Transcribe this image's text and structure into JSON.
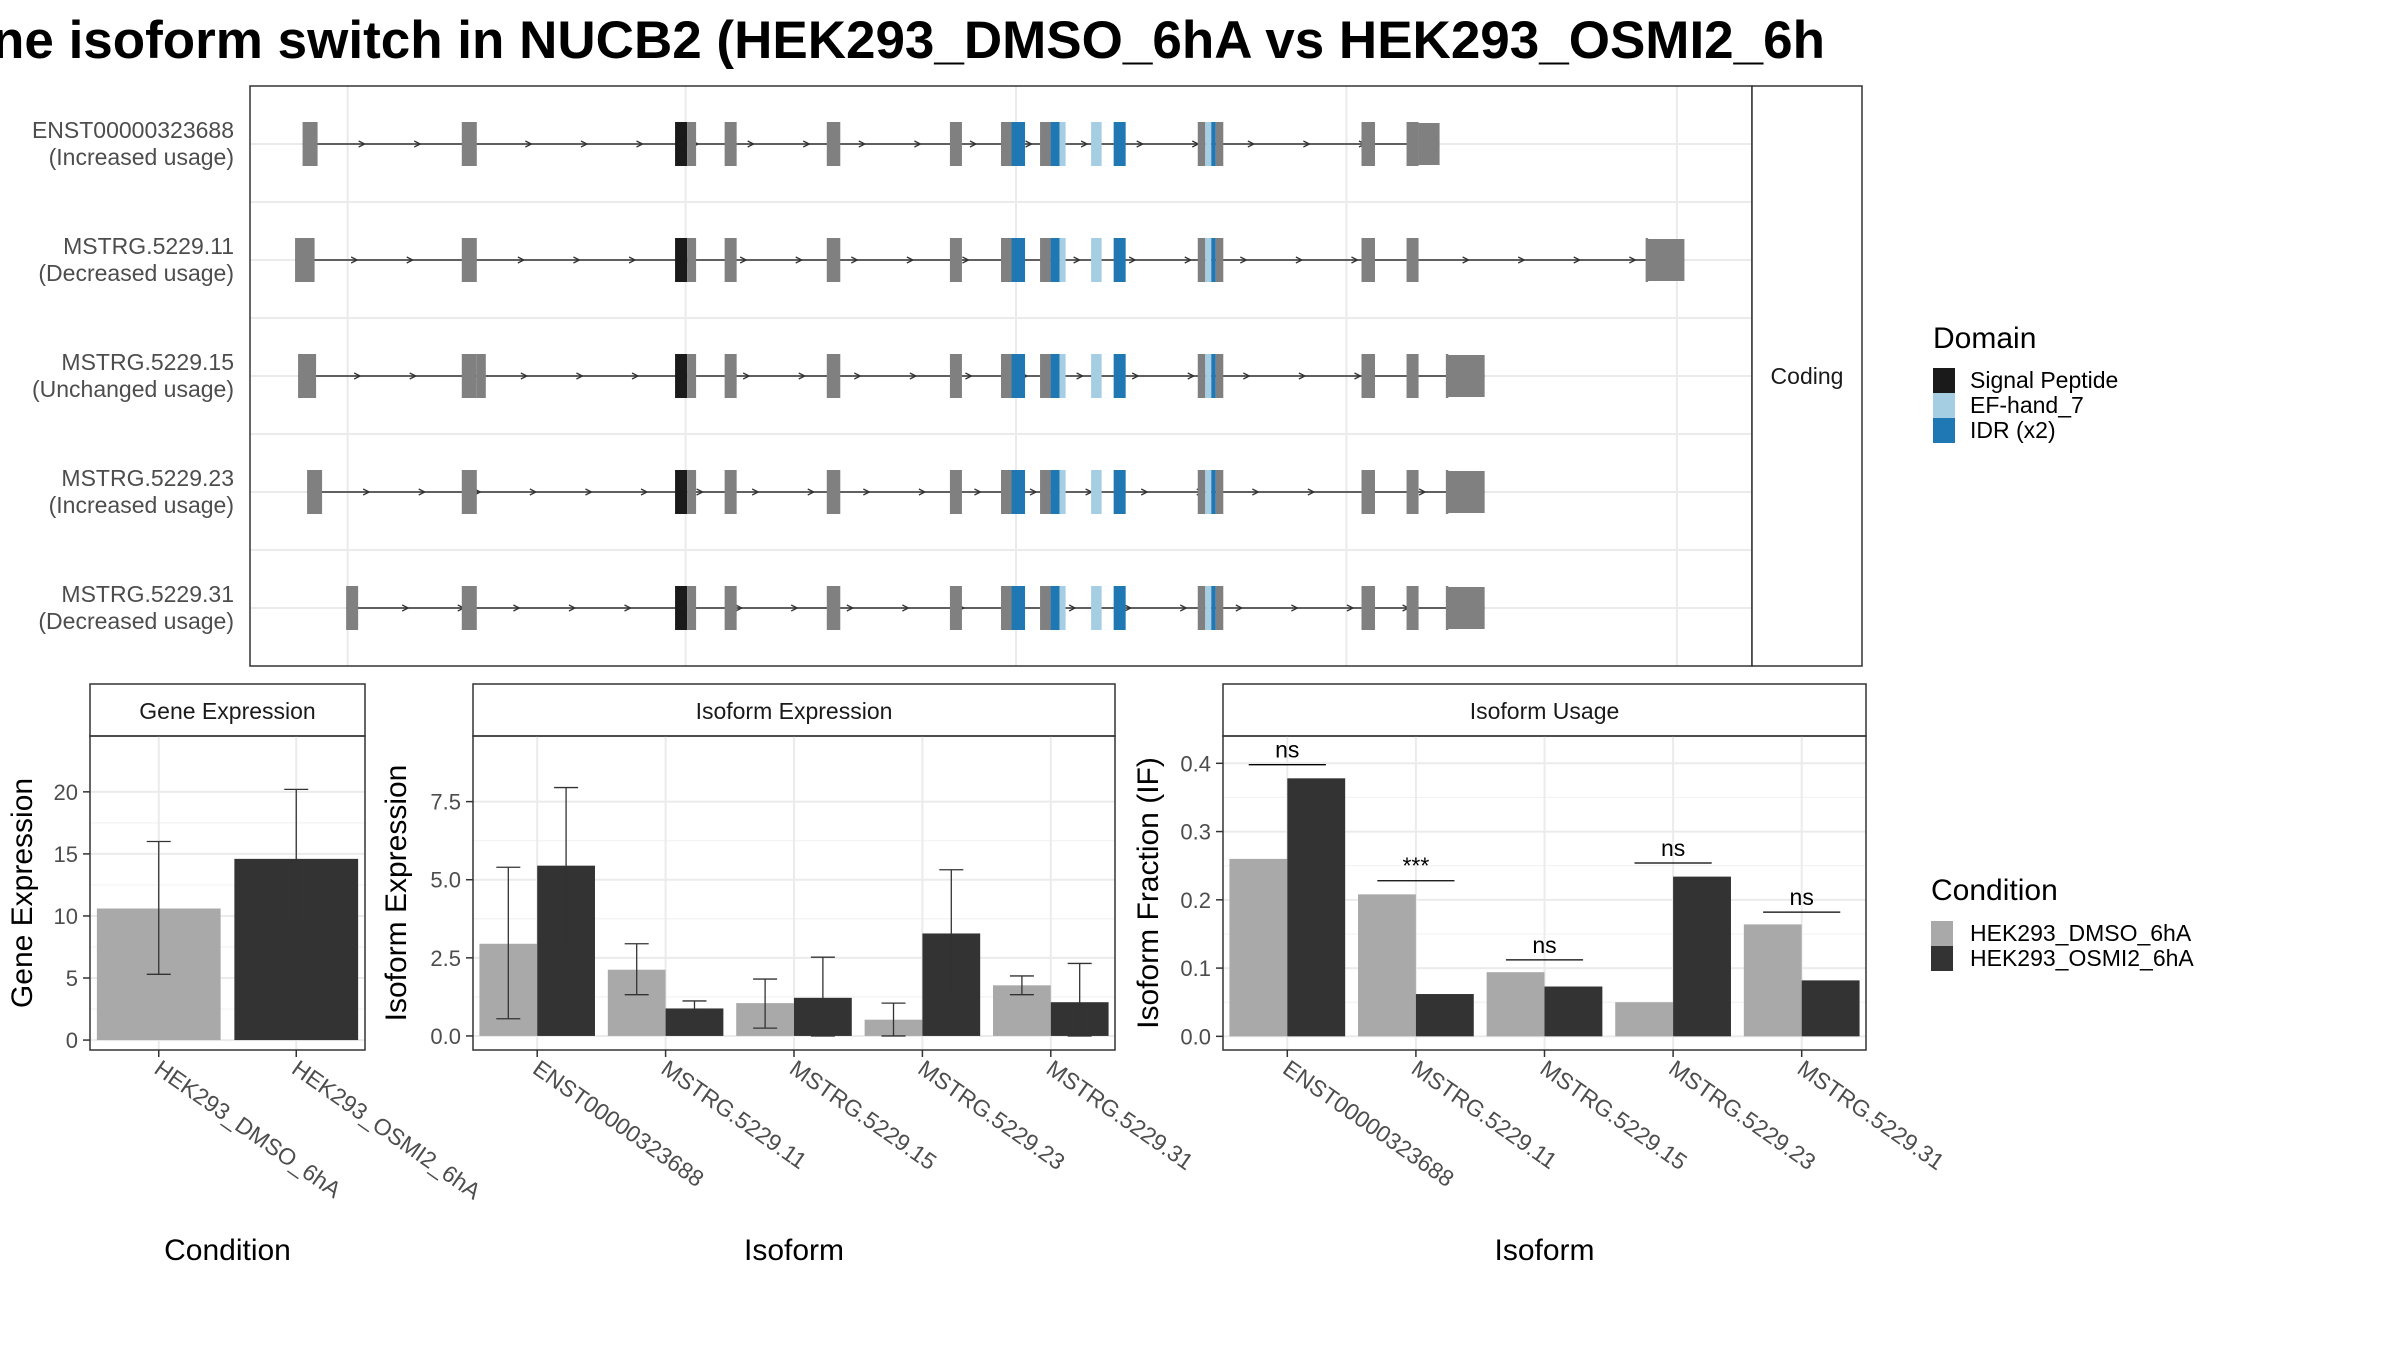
{
  "title": "ne isoform switch in NUCB2 (HEK293_DMSO_6hA vs HEK293_OSMI2_6h",
  "colors": {
    "dmso": "#a9a9a9",
    "osmi": "#333333",
    "exon": "#808080",
    "signal_peptide": "#1a1a1a",
    "ef_hand": "#a6cee3",
    "idr": "#1f78b4",
    "grid": "#ebebeb"
  },
  "chart_data": [
    {
      "type": "gene-structure",
      "panel_label": "Coding",
      "isoforms": [
        {
          "id": "ENST00000323688",
          "usage": "(Increased usage)",
          "first_exon": [
            0.035,
            0.045
          ],
          "last_exon": [
            0.765,
            0.79
          ]
        },
        {
          "id": "MSTRG.5229.11",
          "usage": "(Decreased usage)",
          "first_exon": [
            0.03,
            0.043
          ],
          "last_exon": [
            0.93,
            0.955
          ]
        },
        {
          "id": "MSTRG.5229.15",
          "usage": "(Unchanged usage)",
          "first_exon": [
            0.032,
            0.044
          ],
          "extra_exon": [
            0.151,
            0.157
          ],
          "last_exon": [
            0.797,
            0.822
          ]
        },
        {
          "id": "MSTRG.5229.23",
          "usage": "(Increased usage)",
          "first_exon": [
            0.038,
            0.048
          ],
          "last_exon": [
            0.797,
            0.822
          ]
        },
        {
          "id": "MSTRG.5229.31",
          "usage": "(Decreased usage)",
          "first_exon": [
            0.064,
            0.072
          ],
          "last_exon": [
            0.797,
            0.822
          ]
        }
      ],
      "legend": {
        "title": "Domain",
        "items": [
          {
            "label": "Signal Peptide",
            "color": "#1a1a1a"
          },
          {
            "label": "EF-hand_7",
            "color": "#a6cee3"
          },
          {
            "label": "IDR (x2)",
            "color": "#1f78b4"
          }
        ]
      }
    },
    {
      "type": "bar",
      "strip": "Gene Expression",
      "xlabel": "Condition",
      "ylabel": "Gene Expression",
      "ylim": [
        -0.8,
        24.5
      ],
      "yticks": [
        0,
        5,
        10,
        15,
        20
      ],
      "categories": [
        "HEK293_DMSO_6hA",
        "HEK293_OSMI2_6hA"
      ],
      "values": [
        10.6,
        14.6
      ],
      "err_low": [
        5.3,
        9.0
      ],
      "err_high": [
        16.0,
        20.2
      ]
    },
    {
      "type": "bar",
      "strip": "Isoform Expression",
      "xlabel": "Isoform",
      "ylabel": "Isoform Expression",
      "ylim": [
        -0.45,
        9.6
      ],
      "yticks": [
        0.0,
        2.5,
        5.0,
        7.5
      ],
      "ytick_labels": [
        "0.0",
        "2.5",
        "5.0",
        "7.5"
      ],
      "categories": [
        "ENST00000323688",
        "MSTRG.5229.11",
        "MSTRG.5229.15",
        "MSTRG.5229.23",
        "MSTRG.5229.31"
      ],
      "series": [
        {
          "name": "HEK293_DMSO_6hA",
          "values": [
            2.95,
            2.12,
            1.05,
            0.52,
            1.62
          ],
          "err_low": [
            0.55,
            1.32,
            0.25,
            0.0,
            1.32
          ],
          "err_high": [
            5.4,
            2.95,
            1.82,
            1.05,
            1.92
          ]
        },
        {
          "name": "HEK293_OSMI2_6hA",
          "values": [
            5.45,
            0.88,
            1.22,
            3.28,
            1.08
          ],
          "err_low": [
            2.98,
            0.62,
            0.0,
            1.32,
            0.0
          ],
          "err_high": [
            7.95,
            1.12,
            2.52,
            5.32,
            2.32
          ]
        }
      ]
    },
    {
      "type": "bar",
      "strip": "Isoform Usage",
      "xlabel": "Isoform",
      "ylabel": "Isoform Fraction (IF)",
      "ylim": [
        -0.02,
        0.44
      ],
      "yticks": [
        0.0,
        0.1,
        0.2,
        0.3,
        0.4
      ],
      "ytick_labels": [
        "0.0",
        "0.1",
        "0.2",
        "0.3",
        "0.4"
      ],
      "categories": [
        "ENST00000323688",
        "MSTRG.5229.11",
        "MSTRG.5229.15",
        "MSTRG.5229.23",
        "MSTRG.5229.31"
      ],
      "series": [
        {
          "name": "HEK293_DMSO_6hA",
          "values": [
            0.26,
            0.208,
            0.094,
            0.05,
            0.164
          ]
        },
        {
          "name": "HEK293_OSMI2_6hA",
          "values": [
            0.378,
            0.062,
            0.073,
            0.234,
            0.082
          ]
        }
      ],
      "significance": [
        {
          "label": "ns",
          "level": 0.398
        },
        {
          "label": "***",
          "level": 0.228
        },
        {
          "label": "ns",
          "level": 0.112
        },
        {
          "label": "ns",
          "level": 0.254
        },
        {
          "label": "ns",
          "level": 0.182
        }
      ],
      "legend": {
        "title": "Condition",
        "items": [
          {
            "label": "HEK293_DMSO_6hA",
            "color": "#a9a9a9"
          },
          {
            "label": "HEK293_OSMI2_6hA",
            "color": "#333333"
          }
        ]
      }
    }
  ]
}
